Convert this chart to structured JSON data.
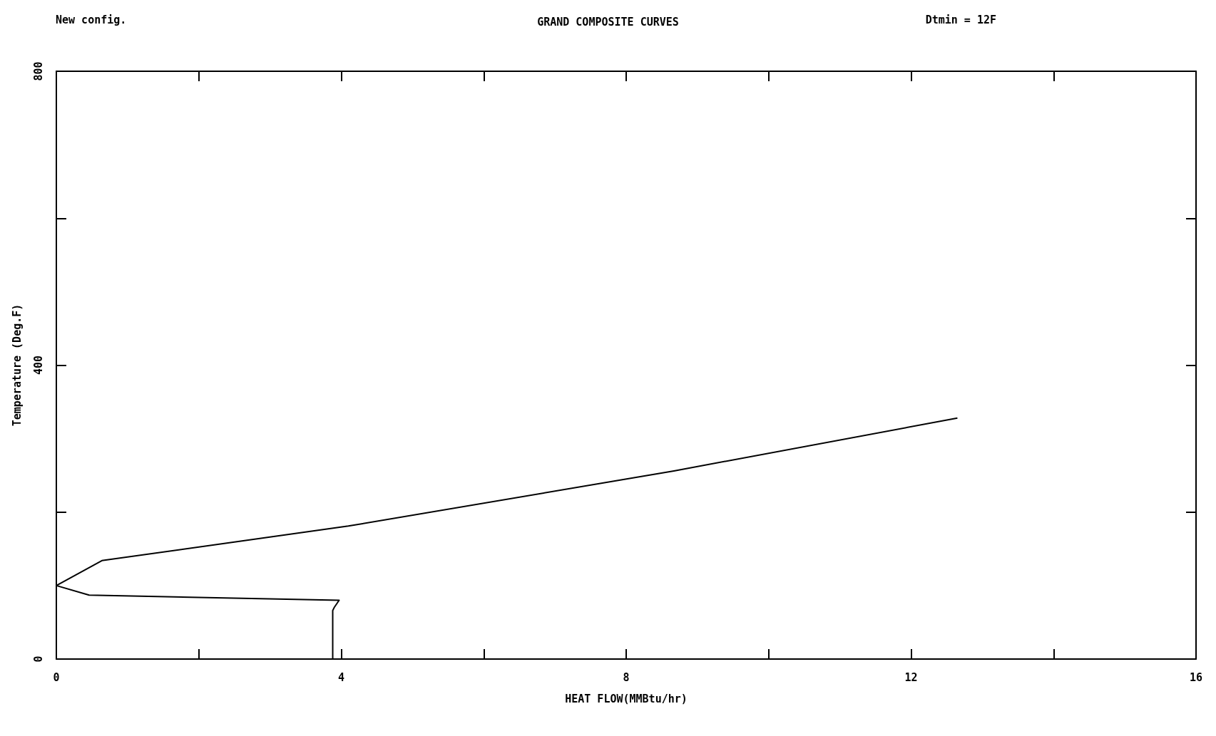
{
  "chart_data": {
    "type": "line",
    "title": "GRAND COMPOSITE CURVES",
    "xlabel": "HEAT FLOW(MMBtu/hr)",
    "ylabel": "Temperature (Deg.F)",
    "annotations": [
      "New config.",
      "Dtmin = 12F"
    ],
    "series": [
      {
        "color": "#000000",
        "x": [
          12.65,
          8.67,
          4.1,
          0.64,
          0,
          0.46,
          3.97,
          3.9,
          3.88,
          3.88
        ],
        "values": [
          328,
          256,
          181,
          134,
          100,
          87,
          80,
          70,
          66,
          0
        ]
      }
    ],
    "xlim": [
      0,
      16
    ],
    "xticks": [
      0,
      {
        "value": 2,
        "label": null
      },
      4,
      {
        "value": 6,
        "label": null
      },
      8,
      {
        "value": 10,
        "label": null
      },
      12,
      {
        "value": 14,
        "label": null
      },
      16
    ],
    "ylim": [
      0,
      800
    ],
    "yticks": [
      0,
      {
        "value": 200,
        "label": null
      },
      400,
      {
        "value": 600,
        "label": null
      },
      800
    ],
    "grid": false,
    "marker": "none",
    "line_style": "solid"
  }
}
